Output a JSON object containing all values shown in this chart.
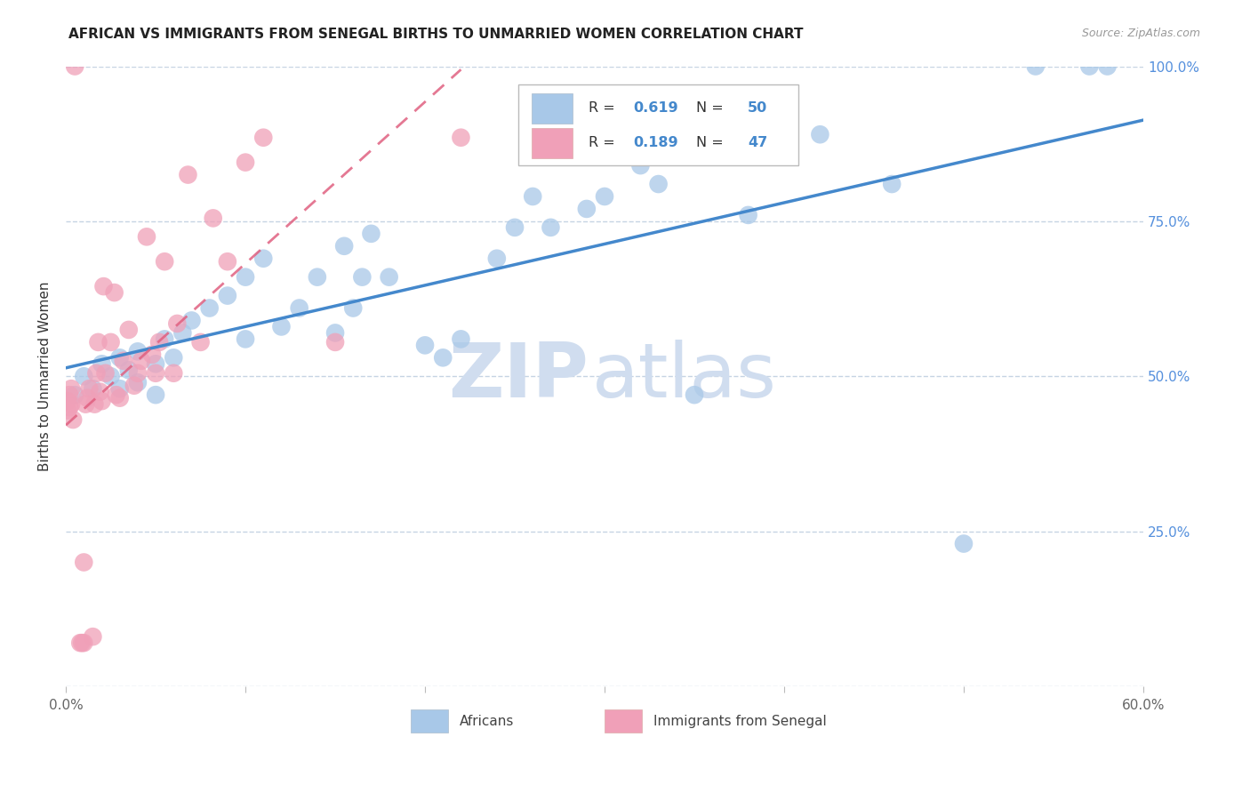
{
  "title": "AFRICAN VS IMMIGRANTS FROM SENEGAL BIRTHS TO UNMARRIED WOMEN CORRELATION CHART",
  "source": "Source: ZipAtlas.com",
  "ylabel": "Births to Unmarried Women",
  "xlim": [
    0.0,
    0.6
  ],
  "ylim": [
    0.0,
    1.0
  ],
  "R_african": 0.619,
  "N_african": 50,
  "R_senegal": 0.189,
  "N_senegal": 47,
  "blue_color": "#A8C8E8",
  "pink_color": "#F0A0B8",
  "blue_line_color": "#4488CC",
  "pink_line_color": "#E06080",
  "grid_color": "#C0D0E0",
  "watermark_color": "#D0DDEF",
  "african_x": [
    0.005,
    0.01,
    0.015,
    0.02,
    0.025,
    0.03,
    0.03,
    0.035,
    0.04,
    0.04,
    0.05,
    0.05,
    0.055,
    0.06,
    0.065,
    0.07,
    0.08,
    0.09,
    0.1,
    0.1,
    0.11,
    0.12,
    0.13,
    0.14,
    0.15,
    0.155,
    0.16,
    0.165,
    0.17,
    0.18,
    0.2,
    0.21,
    0.22,
    0.24,
    0.25,
    0.26,
    0.27,
    0.29,
    0.3,
    0.32,
    0.33,
    0.35,
    0.38,
    0.4,
    0.42,
    0.46,
    0.5,
    0.54,
    0.57,
    0.58
  ],
  "african_y": [
    0.47,
    0.5,
    0.48,
    0.52,
    0.5,
    0.48,
    0.53,
    0.51,
    0.49,
    0.54,
    0.47,
    0.52,
    0.56,
    0.53,
    0.57,
    0.59,
    0.61,
    0.63,
    0.56,
    0.66,
    0.69,
    0.58,
    0.61,
    0.66,
    0.57,
    0.71,
    0.61,
    0.66,
    0.73,
    0.66,
    0.55,
    0.53,
    0.56,
    0.69,
    0.74,
    0.79,
    0.74,
    0.77,
    0.79,
    0.84,
    0.81,
    0.47,
    0.76,
    0.86,
    0.89,
    0.81,
    0.23,
    1.0,
    1.0,
    1.0
  ],
  "senegal_x": [
    0.001,
    0.001,
    0.002,
    0.002,
    0.003,
    0.003,
    0.004,
    0.005,
    0.008,
    0.009,
    0.01,
    0.01,
    0.011,
    0.012,
    0.013,
    0.015,
    0.016,
    0.017,
    0.018,
    0.019,
    0.02,
    0.021,
    0.022,
    0.025,
    0.027,
    0.028,
    0.03,
    0.032,
    0.035,
    0.038,
    0.04,
    0.042,
    0.045,
    0.048,
    0.05,
    0.052,
    0.055,
    0.06,
    0.062,
    0.068,
    0.075,
    0.082,
    0.09,
    0.1,
    0.11,
    0.15,
    0.22
  ],
  "senegal_y": [
    0.445,
    0.46,
    0.45,
    0.47,
    0.455,
    0.48,
    0.43,
    1.0,
    0.07,
    0.07,
    0.07,
    0.2,
    0.455,
    0.465,
    0.48,
    0.08,
    0.455,
    0.505,
    0.555,
    0.475,
    0.46,
    0.645,
    0.505,
    0.555,
    0.635,
    0.47,
    0.465,
    0.525,
    0.575,
    0.485,
    0.505,
    0.525,
    0.725,
    0.535,
    0.505,
    0.555,
    0.685,
    0.505,
    0.585,
    0.825,
    0.555,
    0.755,
    0.685,
    0.845,
    0.885,
    0.555,
    0.885
  ]
}
